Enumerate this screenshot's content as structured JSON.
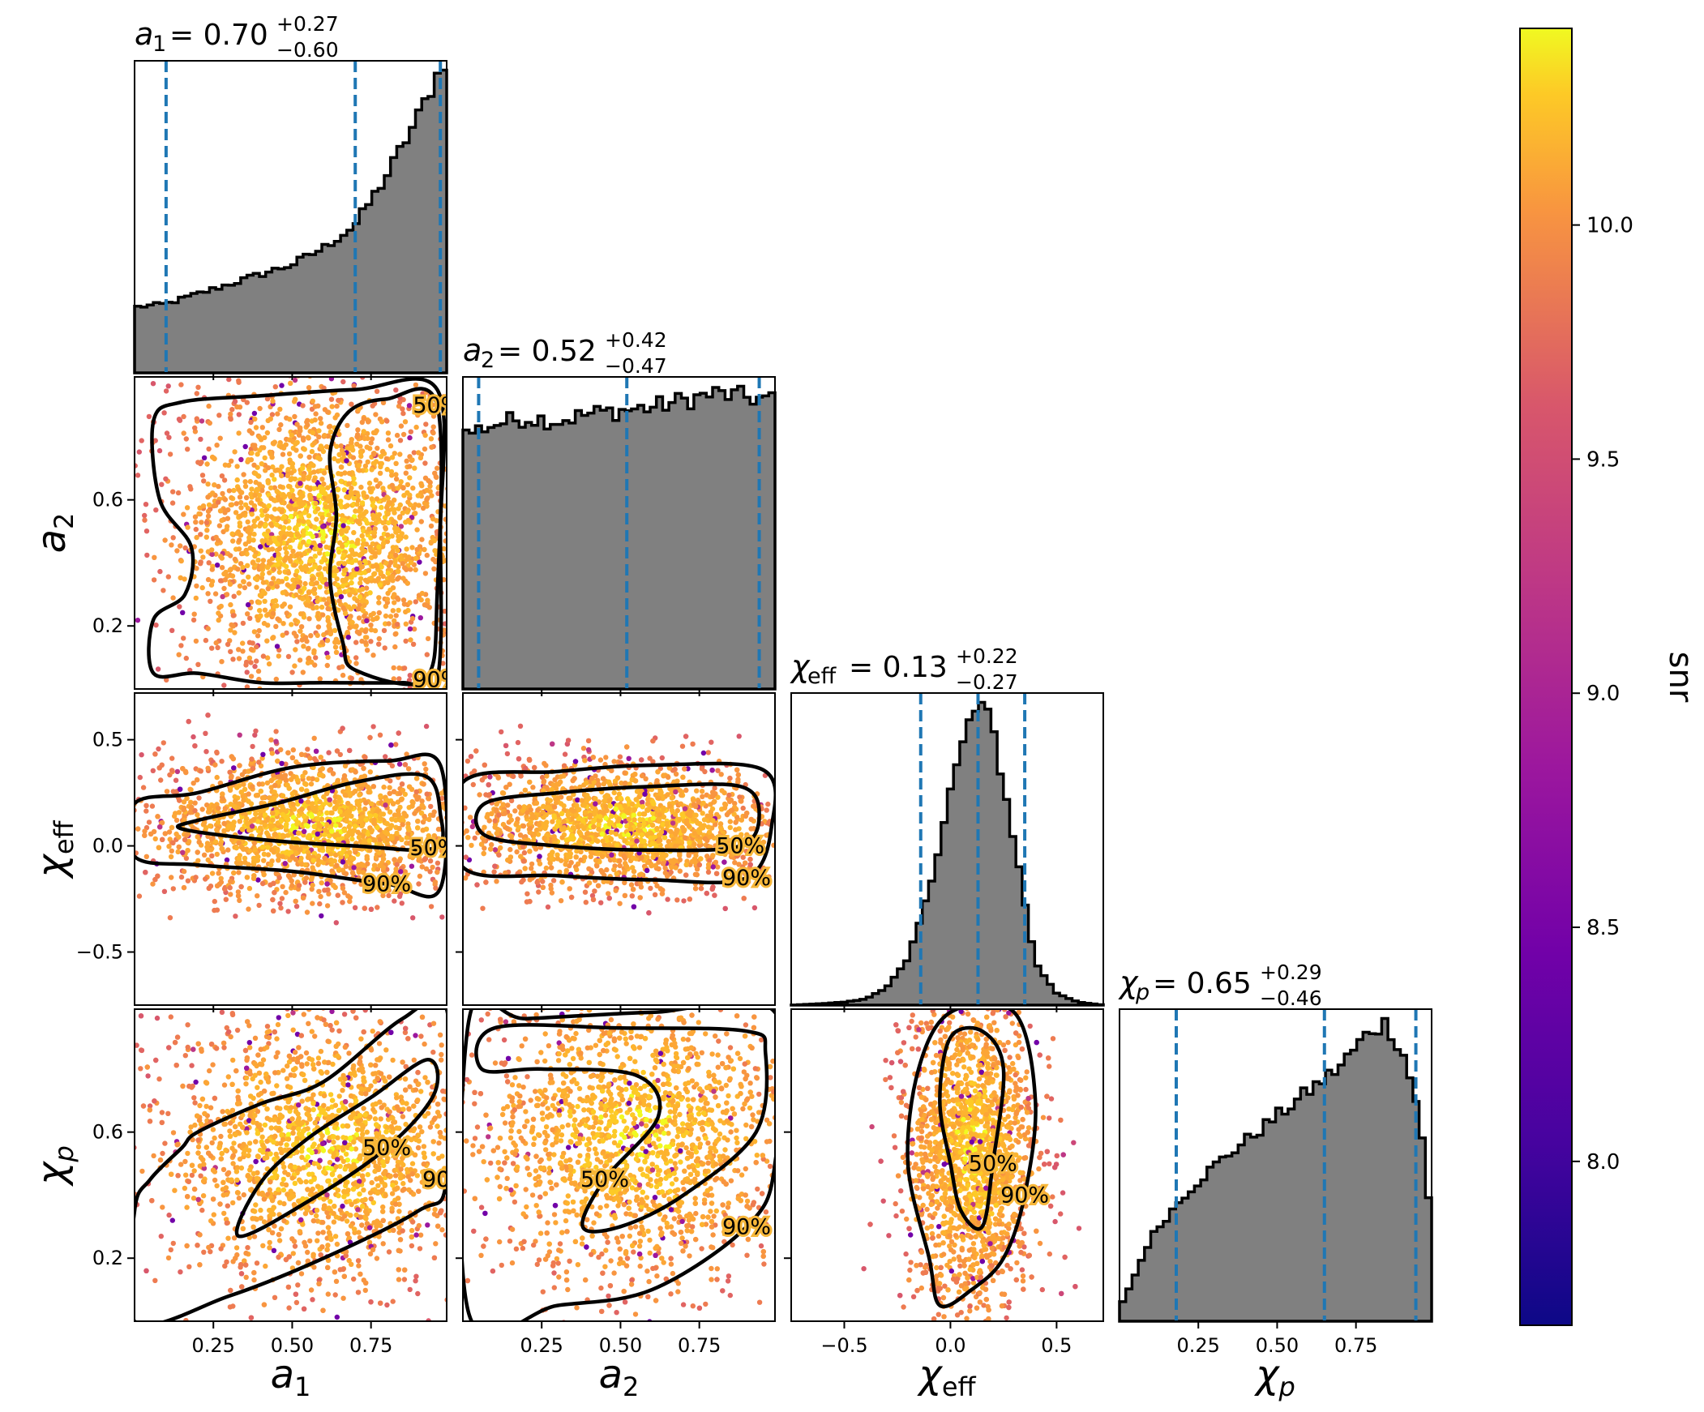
{
  "chart_data": {
    "type": "corner",
    "colorbar": {
      "label": "snr",
      "colormap": "plasma",
      "range": [
        7.65,
        10.42
      ],
      "ticks": [
        "8.0",
        "8.5",
        "9.0",
        "9.5",
        "10.0"
      ],
      "tick_values": [
        8.0,
        8.5,
        9.0,
        9.5,
        10.0
      ]
    },
    "parameters": [
      {
        "key": "a1",
        "label_main": "a",
        "label_sub": "1",
        "sub_italic": false,
        "range": [
          0.0,
          0.99
        ],
        "ticks": [
          "0.25",
          "0.50",
          "0.75"
        ],
        "tick_values": [
          0.25,
          0.5,
          0.75
        ],
        "title_value": "0.70",
        "title_plus": "+0.27",
        "title_minus": "−0.60",
        "median": 0.7,
        "lower": 0.1,
        "upper": 0.97,
        "hist_x": [
          0.0,
          0.1,
          0.2,
          0.3,
          0.4,
          0.5,
          0.6,
          0.7,
          0.8,
          0.9,
          0.99
        ],
        "hist_density": [
          0.2,
          0.21,
          0.24,
          0.27,
          0.3,
          0.33,
          0.38,
          0.45,
          0.6,
          0.78,
          0.97
        ]
      },
      {
        "key": "a2",
        "label_main": "a",
        "label_sub": "2",
        "sub_italic": false,
        "range": [
          0.0,
          0.99
        ],
        "ticks": [
          "0.2",
          "0.6"
        ],
        "tick_values": [
          0.2,
          0.6
        ],
        "x_ticks": [
          "0.25",
          "0.50",
          "0.75"
        ],
        "x_tick_values": [
          0.25,
          0.5,
          0.75
        ],
        "title_value": "0.52",
        "title_plus": "+0.42",
        "title_minus": "−0.47",
        "median": 0.52,
        "lower": 0.05,
        "upper": 0.94,
        "hist_x": [
          0.0,
          0.1,
          0.2,
          0.3,
          0.4,
          0.5,
          0.6,
          0.7,
          0.8,
          0.9,
          0.99
        ],
        "hist_density": [
          0.75,
          0.78,
          0.8,
          0.79,
          0.81,
          0.82,
          0.83,
          0.85,
          0.87,
          0.86,
          0.85
        ]
      },
      {
        "key": "chi_eff",
        "label_main": "χ",
        "label_sub": "eff",
        "sub_italic": false,
        "range": [
          -0.75,
          0.72
        ],
        "ticks": [
          "−0.5",
          "0.0",
          "0.5"
        ],
        "tick_values": [
          -0.5,
          0.0,
          0.5
        ],
        "title_value": "0.13",
        "title_plus": "+0.22",
        "title_minus": "−0.27",
        "median": 0.13,
        "lower": -0.14,
        "upper": 0.35,
        "hist_x": [
          -0.75,
          -0.6,
          -0.5,
          -0.4,
          -0.3,
          -0.2,
          -0.1,
          0.0,
          0.1,
          0.15,
          0.2,
          0.3,
          0.4,
          0.5,
          0.6,
          0.72
        ],
        "hist_density": [
          0.0,
          0.005,
          0.01,
          0.02,
          0.06,
          0.15,
          0.38,
          0.72,
          0.97,
          1.0,
          0.92,
          0.55,
          0.14,
          0.04,
          0.01,
          0.0
        ]
      },
      {
        "key": "chi_p",
        "label_main": "χ",
        "label_sub": "p",
        "sub_italic": true,
        "range": [
          0.0,
          0.99
        ],
        "ticks": [
          "0.2",
          "0.6"
        ],
        "tick_values": [
          0.2,
          0.6
        ],
        "x_ticks": [
          "0.25",
          "0.50",
          "0.75"
        ],
        "x_tick_values": [
          0.25,
          0.5,
          0.75
        ],
        "title_value": "0.65",
        "title_plus": "+0.29",
        "title_minus": "−0.46",
        "median": 0.65,
        "lower": 0.18,
        "upper": 0.94,
        "hist_x": [
          0.0,
          0.05,
          0.1,
          0.2,
          0.3,
          0.4,
          0.5,
          0.6,
          0.7,
          0.8,
          0.85,
          0.9,
          0.95,
          0.99
        ],
        "hist_density": [
          0.04,
          0.15,
          0.27,
          0.4,
          0.5,
          0.58,
          0.66,
          0.74,
          0.82,
          0.94,
          0.96,
          0.86,
          0.68,
          0.3
        ]
      }
    ],
    "contour_labels": [
      "90%",
      "50%"
    ],
    "panels": [
      {
        "x": "a1",
        "y": "a2",
        "c90": [
          [
            0.06,
            0.05
          ],
          [
            0.2,
            0.05
          ],
          [
            0.4,
            0.02
          ],
          [
            0.6,
            0.02
          ],
          [
            0.85,
            0.02
          ],
          [
            0.96,
            0.03
          ],
          [
            0.97,
            0.5
          ],
          [
            0.96,
            0.95
          ],
          [
            0.7,
            0.95
          ],
          [
            0.4,
            0.93
          ],
          [
            0.15,
            0.91
          ],
          [
            0.06,
            0.85
          ],
          [
            0.08,
            0.6
          ],
          [
            0.18,
            0.45
          ],
          [
            0.16,
            0.3
          ],
          [
            0.06,
            0.22
          ]
        ],
        "c50": [
          [
            0.7,
            0.06
          ],
          [
            0.92,
            0.03
          ],
          [
            0.96,
            0.3
          ],
          [
            0.96,
            0.9
          ],
          [
            0.8,
            0.92
          ],
          [
            0.68,
            0.88
          ],
          [
            0.62,
            0.75
          ],
          [
            0.64,
            0.55
          ],
          [
            0.62,
            0.35
          ],
          [
            0.66,
            0.15
          ]
        ],
        "point_center": [
          0.6,
          0.5
        ],
        "point_spread": [
          0.28,
          0.28
        ]
      },
      {
        "x": "a1",
        "y": "chi_eff",
        "c90": [
          [
            0.0,
            -0.05
          ],
          [
            0.2,
            -0.09
          ],
          [
            0.5,
            -0.12
          ],
          [
            0.8,
            -0.18
          ],
          [
            0.97,
            -0.2
          ],
          [
            0.97,
            0.38
          ],
          [
            0.8,
            0.4
          ],
          [
            0.5,
            0.37
          ],
          [
            0.2,
            0.25
          ],
          [
            0.0,
            0.2
          ]
        ],
        "c50": [
          [
            0.15,
            0.08
          ],
          [
            0.4,
            0.03
          ],
          [
            0.7,
            0.0
          ],
          [
            0.95,
            -0.01
          ],
          [
            0.97,
            0.15
          ],
          [
            0.92,
            0.33
          ],
          [
            0.7,
            0.3
          ],
          [
            0.45,
            0.2
          ],
          [
            0.2,
            0.12
          ]
        ],
        "point_center": [
          0.55,
          0.1
        ],
        "point_spread": [
          0.3,
          0.2
        ]
      },
      {
        "x": "a2",
        "y": "chi_eff",
        "c90": [
          [
            0.0,
            -0.1
          ],
          [
            0.3,
            -0.14
          ],
          [
            0.6,
            -0.16
          ],
          [
            0.9,
            -0.15
          ],
          [
            0.98,
            0.1
          ],
          [
            0.95,
            0.36
          ],
          [
            0.6,
            0.38
          ],
          [
            0.3,
            0.35
          ],
          [
            0.0,
            0.3
          ]
        ],
        "c50": [
          [
            0.07,
            0.05
          ],
          [
            0.3,
            0.0
          ],
          [
            0.6,
            -0.02
          ],
          [
            0.88,
            0.0
          ],
          [
            0.94,
            0.15
          ],
          [
            0.88,
            0.28
          ],
          [
            0.6,
            0.28
          ],
          [
            0.3,
            0.25
          ],
          [
            0.07,
            0.2
          ]
        ],
        "point_center": [
          0.5,
          0.1
        ],
        "point_spread": [
          0.3,
          0.18
        ]
      },
      {
        "x": "a1",
        "y": "chi_p",
        "c90": [
          [
            0.0,
            0.0
          ],
          [
            0.3,
            0.08
          ],
          [
            0.6,
            0.2
          ],
          [
            0.9,
            0.35
          ],
          [
            0.99,
            0.45
          ],
          [
            0.99,
            0.99
          ],
          [
            0.85,
            0.96
          ],
          [
            0.6,
            0.76
          ],
          [
            0.4,
            0.69
          ],
          [
            0.2,
            0.6
          ],
          [
            0.15,
            0.55
          ],
          [
            0.05,
            0.45
          ],
          [
            0.0,
            0.35
          ]
        ],
        "c50": [
          [
            0.33,
            0.27
          ],
          [
            0.55,
            0.38
          ],
          [
            0.8,
            0.55
          ],
          [
            0.95,
            0.72
          ],
          [
            0.93,
            0.83
          ],
          [
            0.75,
            0.71
          ],
          [
            0.55,
            0.58
          ],
          [
            0.4,
            0.44
          ]
        ],
        "point_center": [
          0.6,
          0.55
        ],
        "point_spread": [
          0.3,
          0.25
        ]
      },
      {
        "x": "a2",
        "y": "chi_p",
        "c90": [
          [
            0.02,
            0.02
          ],
          [
            0.3,
            0.05
          ],
          [
            0.6,
            0.1
          ],
          [
            0.9,
            0.3
          ],
          [
            0.99,
            0.5
          ],
          [
            0.99,
            0.98
          ],
          [
            0.6,
            0.98
          ],
          [
            0.2,
            0.96
          ],
          [
            0.02,
            0.96
          ]
        ],
        "c50": [
          [
            0.06,
            0.8
          ],
          [
            0.25,
            0.8
          ],
          [
            0.55,
            0.78
          ],
          [
            0.62,
            0.65
          ],
          [
            0.45,
            0.45
          ],
          [
            0.38,
            0.3
          ],
          [
            0.5,
            0.3
          ],
          [
            0.7,
            0.4
          ],
          [
            0.93,
            0.6
          ],
          [
            0.96,
            0.85
          ],
          [
            0.9,
            0.92
          ],
          [
            0.5,
            0.93
          ],
          [
            0.1,
            0.93
          ]
        ],
        "point_center": [
          0.55,
          0.6
        ],
        "point_spread": [
          0.3,
          0.28
        ]
      },
      {
        "x": "chi_eff",
        "y": "chi_p",
        "c90": [
          [
            -0.05,
            0.05
          ],
          [
            0.1,
            0.1
          ],
          [
            0.25,
            0.2
          ],
          [
            0.35,
            0.4
          ],
          [
            0.4,
            0.7
          ],
          [
            0.3,
            0.98
          ],
          [
            0.0,
            0.98
          ],
          [
            -0.15,
            0.8
          ],
          [
            -0.2,
            0.5
          ],
          [
            -0.1,
            0.2
          ]
        ],
        "c50": [
          [
            0.05,
            0.35
          ],
          [
            0.15,
            0.3
          ],
          [
            0.2,
            0.5
          ],
          [
            0.25,
            0.8
          ],
          [
            0.15,
            0.92
          ],
          [
            0.0,
            0.9
          ],
          [
            -0.05,
            0.7
          ],
          [
            0.0,
            0.5
          ]
        ],
        "point_center": [
          0.1,
          0.55
        ],
        "point_spread": [
          0.18,
          0.3
        ]
      }
    ]
  }
}
